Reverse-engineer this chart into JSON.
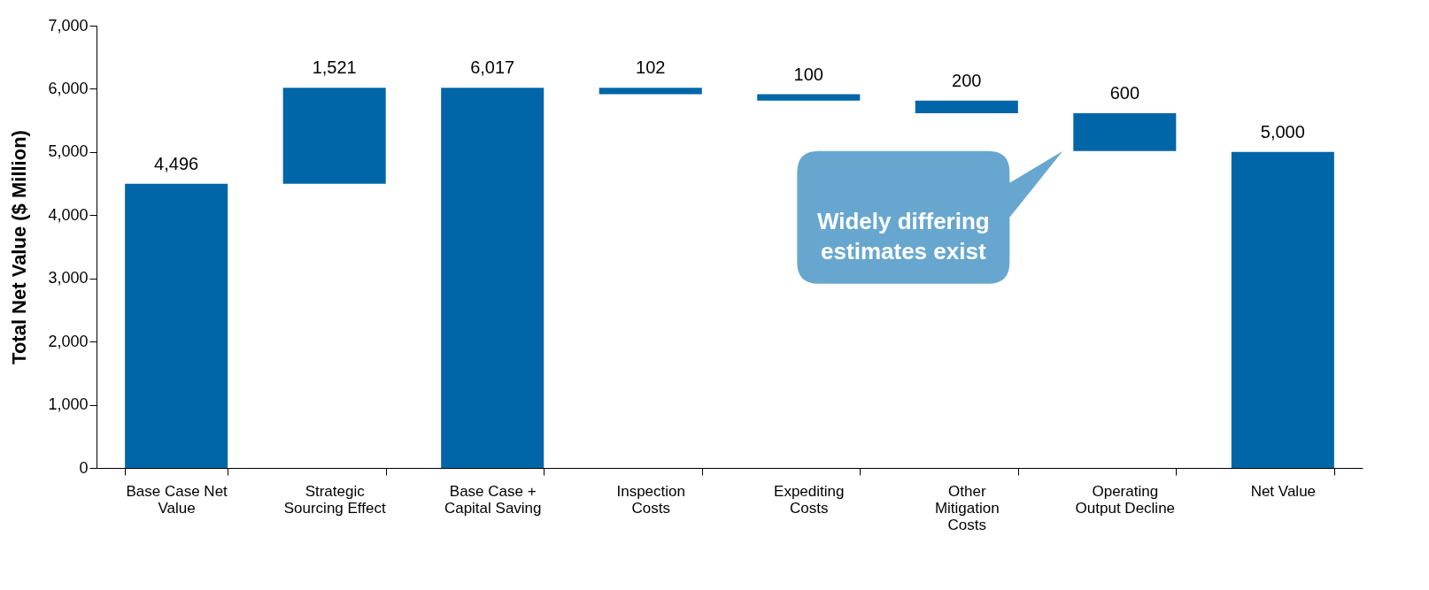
{
  "chart_data": {
    "type": "bar",
    "categories": [
      "Base Case Net Value",
      "Strategic Sourcing Effect",
      "Base Case + Capital Saving",
      "Inspection Costs",
      "Expediting Costs",
      "Other Mitigation Costs",
      "Operating Output Decline",
      "Net Value"
    ],
    "values": [
      4496,
      1521,
      6017,
      102,
      100,
      200,
      600,
      5000
    ],
    "base": [
      0,
      4496,
      0,
      5915,
      5815,
      5615,
      5015,
      0
    ],
    "color": "#0066a8",
    "ylabel": "Total Net Value ($ Million)",
    "ylim": [
      0,
      7000
    ],
    "yticks": [
      0,
      {
        "value": 1000,
        "label": "1,000"
      },
      {
        "value": 2000,
        "label": "2,000"
      },
      {
        "value": 3000,
        "label": "3,000"
      },
      {
        "value": 4000,
        "label": "4,000"
      },
      {
        "value": 5000,
        "label": "5,000"
      },
      {
        "value": 6000,
        "label": "6,000"
      },
      {
        "value": 7000,
        "label": "7,000"
      }
    ],
    "value_labels": [
      "4,496",
      "1,521",
      "6,017",
      "102",
      "100",
      "200",
      "600",
      "5,000"
    ],
    "grid": false,
    "annotations": [
      "Widely differing estimates exist"
    ]
  }
}
